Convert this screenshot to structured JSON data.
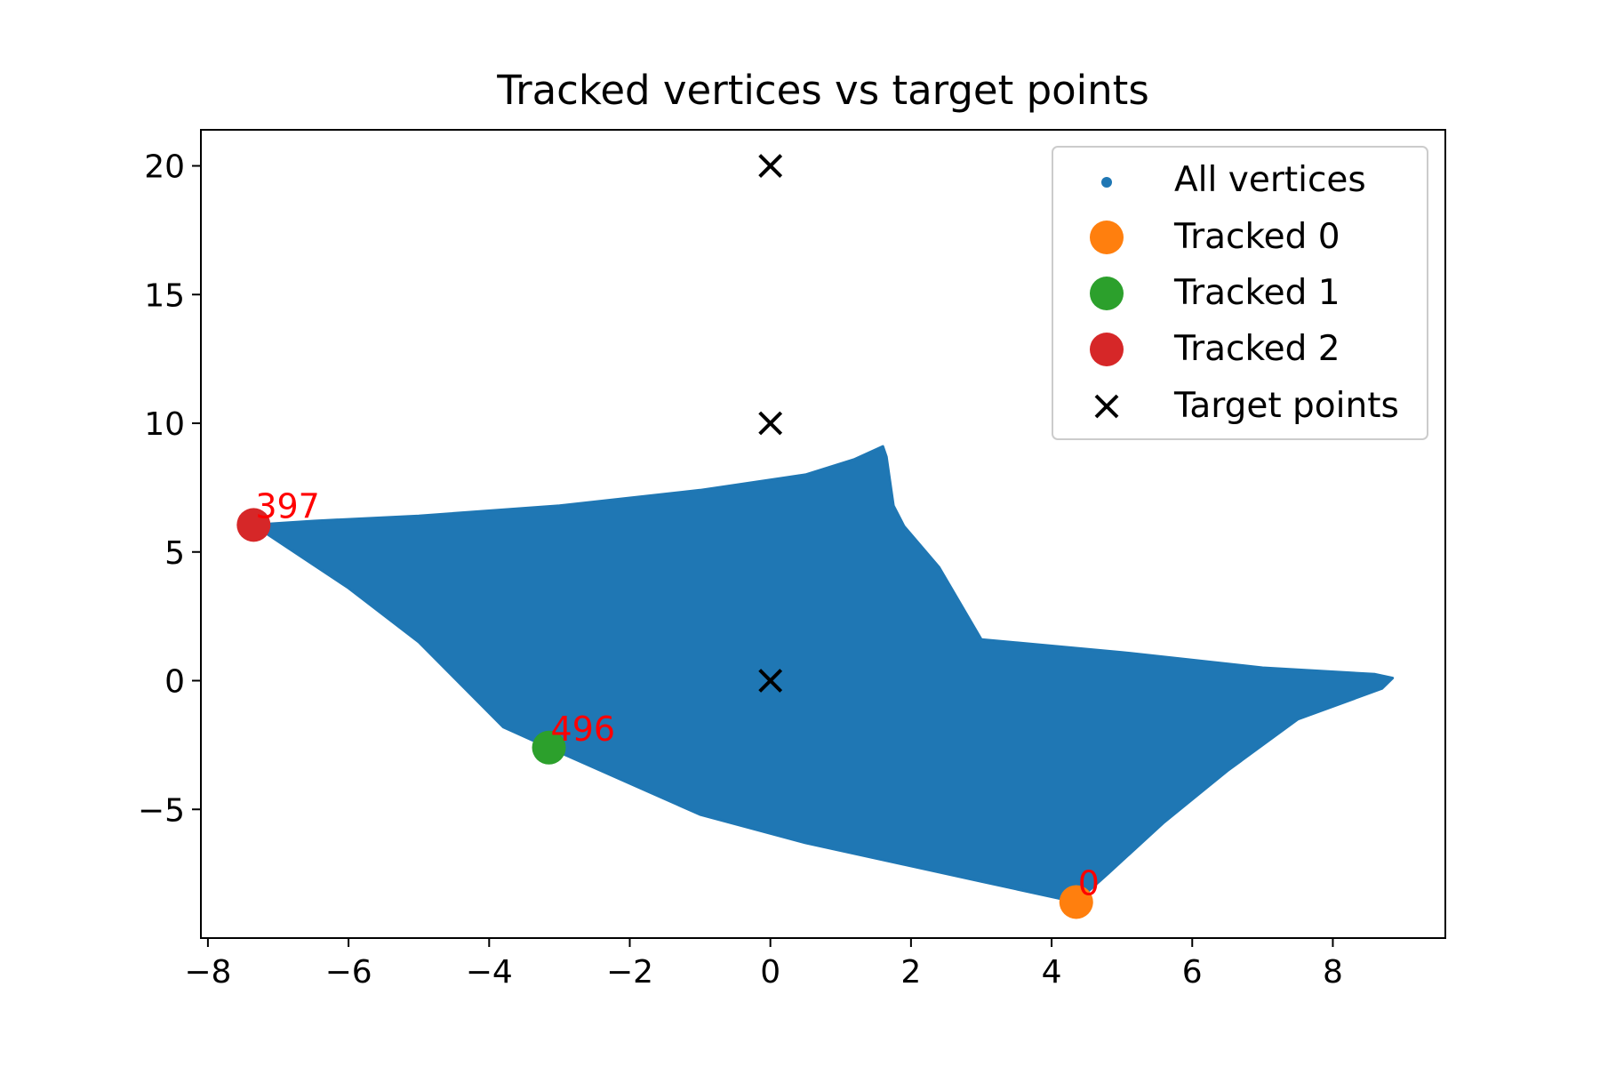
{
  "chart_data": {
    "type": "scatter",
    "title": "Tracked vertices vs target points",
    "xlabel": "",
    "ylabel": "",
    "xlim": [
      -8.1,
      9.6
    ],
    "ylim": [
      -10,
      21.4
    ],
    "xticks": [
      -8,
      -6,
      -4,
      -2,
      0,
      2,
      4,
      6,
      8
    ],
    "yticks": [
      -5,
      0,
      5,
      10,
      15,
      20
    ],
    "xtick_labels": [
      "−8",
      "−6",
      "−4",
      "−2",
      "0",
      "2",
      "4",
      "6",
      "8"
    ],
    "ytick_labels": [
      "−5",
      "0",
      "5",
      "10",
      "15",
      "20"
    ],
    "grid": false,
    "legend_position": "top-right",
    "series": [
      {
        "name": "All vertices",
        "kind": "region",
        "color": "#1f77b4",
        "outline": [
          [
            -7.35,
            6.05
          ],
          [
            -6.5,
            6.2
          ],
          [
            -5.0,
            6.4
          ],
          [
            -3.0,
            6.8
          ],
          [
            -1.0,
            7.4
          ],
          [
            0.5,
            8.0
          ],
          [
            1.2,
            8.6
          ],
          [
            1.6,
            9.1
          ],
          [
            1.65,
            8.7
          ],
          [
            1.75,
            6.8
          ],
          [
            1.9,
            6.0
          ],
          [
            2.4,
            4.4
          ],
          [
            3.0,
            1.6
          ],
          [
            5.0,
            1.1
          ],
          [
            7.0,
            0.5
          ],
          [
            8.6,
            0.25
          ],
          [
            8.85,
            0.1
          ],
          [
            8.7,
            -0.3
          ],
          [
            7.5,
            -1.5
          ],
          [
            6.5,
            -3.5
          ],
          [
            5.6,
            -5.5
          ],
          [
            4.8,
            -7.5
          ],
          [
            4.35,
            -8.6
          ],
          [
            3.0,
            -7.8
          ],
          [
            0.5,
            -6.3
          ],
          [
            -1.0,
            -5.2
          ],
          [
            -3.15,
            -2.6
          ],
          [
            -3.8,
            -1.8
          ],
          [
            -5.0,
            1.5
          ],
          [
            -6.0,
            3.6
          ],
          [
            -7.35,
            6.05
          ]
        ]
      },
      {
        "name": "Tracked 0",
        "color": "#ff7f0e",
        "x": [
          4.35
        ],
        "y": [
          -8.6
        ]
      },
      {
        "name": "Tracked 1",
        "color": "#2ca02c",
        "x": [
          -3.15
        ],
        "y": [
          -2.6
        ]
      },
      {
        "name": "Tracked 2",
        "color": "#d62728",
        "x": [
          -7.35
        ],
        "y": [
          6.05
        ]
      },
      {
        "name": "Target points",
        "color": "#000000",
        "marker": "x",
        "x": [
          0,
          0,
          0
        ],
        "y": [
          0,
          10,
          20
        ]
      }
    ],
    "annotations": [
      {
        "text": "0",
        "x": 4.35,
        "y": -8.6,
        "color": "#ff0000"
      },
      {
        "text": "496",
        "x": -3.15,
        "y": -2.6,
        "color": "#ff0000"
      },
      {
        "text": "397",
        "x": -7.35,
        "y": 6.05,
        "color": "#ff0000"
      }
    ]
  }
}
